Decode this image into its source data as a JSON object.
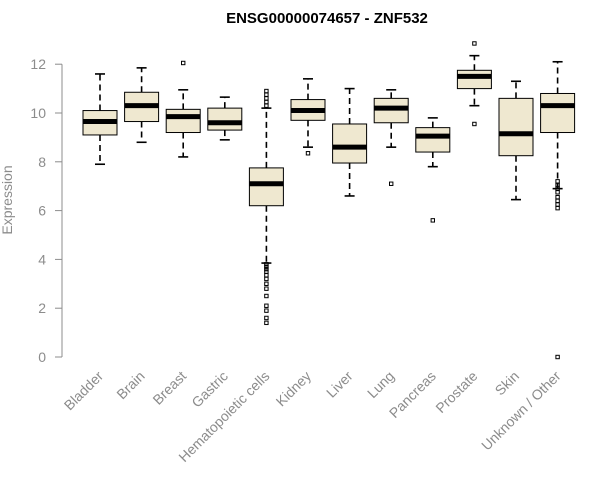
{
  "chart_data": {
    "type": "boxplot",
    "title": "ENSG00000074657 - ZNF532",
    "ylabel": "Expression",
    "ylim": [
      0,
      12.5
    ],
    "yticks": [
      0,
      2,
      4,
      6,
      8,
      10,
      12
    ],
    "grid": false,
    "box_fill": "#efe8d0",
    "box_stroke": "#000000",
    "categories": [
      "Bladder",
      "Brain",
      "Breast",
      "Gastric",
      "Hematopoietic cells",
      "Kidney",
      "Liver",
      "Lung",
      "Pancreas",
      "Prostate",
      "Skin",
      "Unknown / Other"
    ],
    "boxes": [
      {
        "category": "Bladder",
        "min": 7.9,
        "q1": 9.1,
        "median": 9.65,
        "q3": 10.1,
        "max": 11.6,
        "outliers": []
      },
      {
        "category": "Brain",
        "min": 8.8,
        "q1": 9.65,
        "median": 10.3,
        "q3": 10.85,
        "max": 11.85,
        "outliers": []
      },
      {
        "category": "Breast",
        "min": 8.2,
        "q1": 9.2,
        "median": 9.85,
        "q3": 10.15,
        "max": 10.95,
        "outliers": [
          12.05
        ]
      },
      {
        "category": "Gastric",
        "min": 8.9,
        "q1": 9.3,
        "median": 9.6,
        "q3": 10.2,
        "max": 10.65,
        "outliers": []
      },
      {
        "category": "Hematopoietic cells",
        "min": 3.85,
        "q1": 6.2,
        "median": 7.1,
        "q3": 7.75,
        "max": 10.2,
        "outliers": [
          1.4,
          1.6,
          1.9,
          2.1,
          2.5,
          2.8,
          3.0,
          3.2,
          3.35,
          3.5,
          3.6,
          3.7,
          3.8,
          10.3,
          10.45,
          10.6,
          10.75,
          10.9
        ]
      },
      {
        "category": "Kidney",
        "min": 8.6,
        "q1": 9.7,
        "median": 10.1,
        "q3": 10.55,
        "max": 11.4,
        "outliers": [
          8.35
        ]
      },
      {
        "category": "Liver",
        "min": 6.6,
        "q1": 7.95,
        "median": 8.6,
        "q3": 9.55,
        "max": 11.0,
        "outliers": []
      },
      {
        "category": "Lung",
        "min": 8.6,
        "q1": 9.6,
        "median": 10.2,
        "q3": 10.6,
        "max": 10.95,
        "outliers": [
          7.1
        ]
      },
      {
        "category": "Pancreas",
        "min": 7.8,
        "q1": 8.4,
        "median": 9.05,
        "q3": 9.4,
        "max": 9.8,
        "outliers": [
          5.6
        ]
      },
      {
        "category": "Prostate",
        "min": 10.3,
        "q1": 11.0,
        "median": 11.5,
        "q3": 11.75,
        "max": 12.35,
        "outliers": [
          9.55,
          12.85
        ]
      },
      {
        "category": "Skin",
        "min": 6.45,
        "q1": 8.25,
        "median": 9.15,
        "q3": 10.6,
        "max": 11.3,
        "outliers": []
      },
      {
        "category": "Unknown / Other",
        "min": 6.9,
        "q1": 9.2,
        "median": 10.3,
        "q3": 10.8,
        "max": 12.1,
        "outliers": [
          0.0,
          6.1,
          6.25,
          6.4,
          6.55,
          6.75,
          6.9,
          7.05,
          7.2
        ]
      }
    ]
  }
}
